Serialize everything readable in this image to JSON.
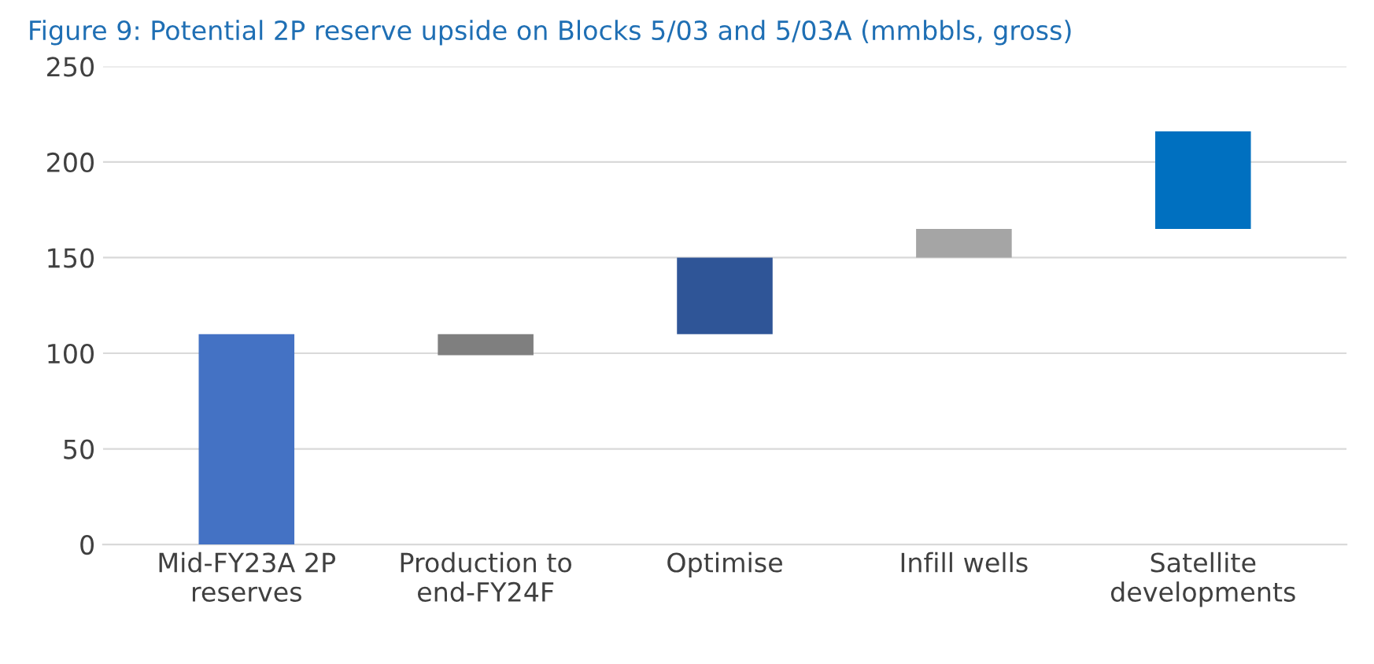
{
  "chart_data": {
    "type": "bar",
    "title": "Figure 9: Potential 2P reserve upside on Blocks 5/03 and 5/03A (mmbbls, gross)",
    "categories": [
      "Mid-FY23A 2P\nreserves",
      "Production to\nend-FY24F",
      "Optimise",
      "Infill wells",
      "Satellite\ndevelopments"
    ],
    "values": [
      110,
      -11,
      40,
      15,
      51
    ],
    "base": [
      0,
      110,
      110,
      150,
      165
    ],
    "colors": [
      "#4472c4",
      "#7f7f7f",
      "#2f5597",
      "#a5a5a5",
      "#0070c0"
    ],
    "ylim": [
      0,
      250
    ],
    "yticks": [
      0,
      50,
      100,
      150,
      200,
      250
    ],
    "grid": "y"
  }
}
